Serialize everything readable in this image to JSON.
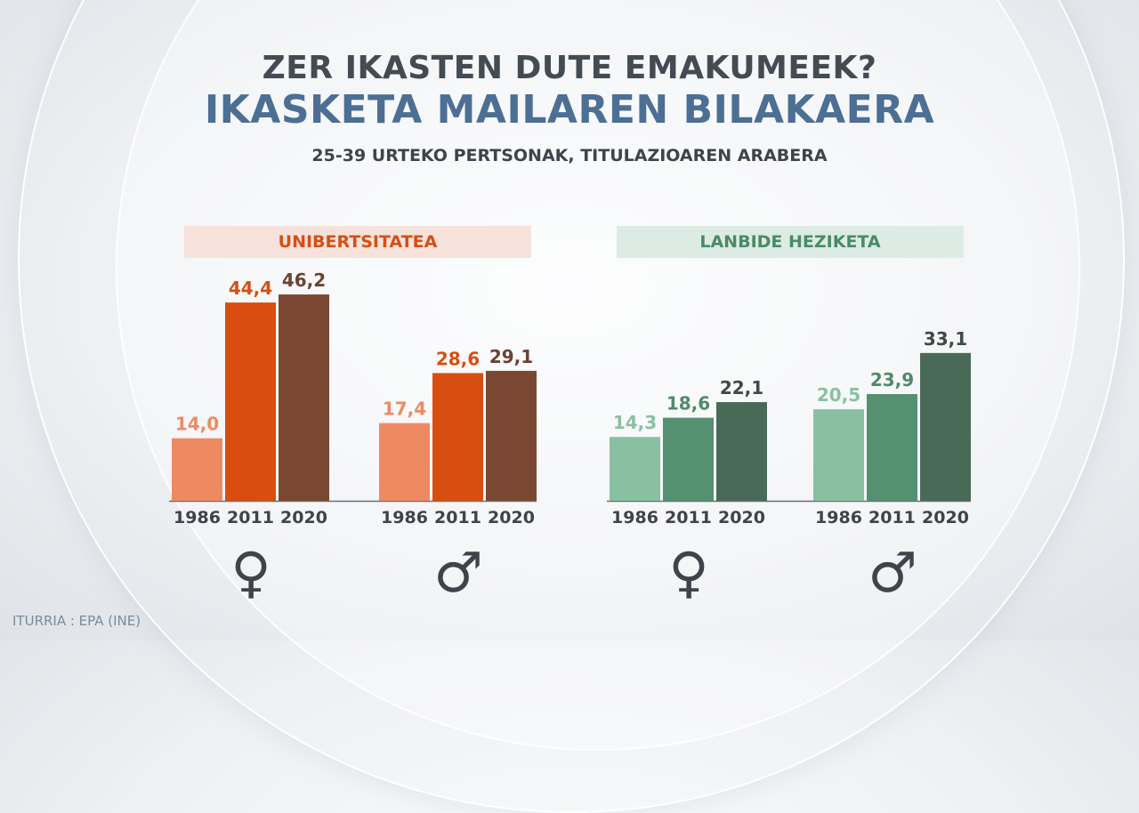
{
  "header": {
    "title": "ZER IKASTEN DUTE EMAKUMEEK?",
    "headline": "IKASKETA MAILAREN BILAKAERA",
    "subtitle": "25-39 URTEKO PERTSONAK, TITULAZIOAREN ARABERA"
  },
  "source": "ITURRIA : EPA (INE)",
  "chart_data": [
    {
      "type": "bar",
      "title": "UNIBERTSITATEA",
      "categories": [
        "1986",
        "2011",
        "2020"
      ],
      "colors": [
        "#ee8a62",
        "#d84e10",
        "#7a4733"
      ],
      "header_bg": "#f6e2da",
      "header_color": "#d54f16",
      "series": [
        {
          "name": "♀",
          "values": [
            14.0,
            44.4,
            46.2
          ]
        },
        {
          "name": "♂",
          "values": [
            17.4,
            28.6,
            29.1
          ]
        }
      ]
    },
    {
      "type": "bar",
      "title": "LANBIDE HEZIKETA",
      "categories": [
        "1986",
        "2011",
        "2020"
      ],
      "colors": [
        "#8ac0a2",
        "#559071",
        "#4a6a58"
      ],
      "header_bg": "#dcece4",
      "header_color": "#4a8a68",
      "series": [
        {
          "name": "♀",
          "values": [
            14.3,
            18.6,
            22.1
          ]
        },
        {
          "name": "♂",
          "values": [
            20.5,
            23.9,
            33.1
          ]
        }
      ]
    }
  ],
  "label_colors": [
    [
      "#ee8a62",
      "#d84e10",
      "#6b4233"
    ],
    [
      "#8ac0a2",
      "#4f8a6a",
      "#3e4a46"
    ]
  ]
}
